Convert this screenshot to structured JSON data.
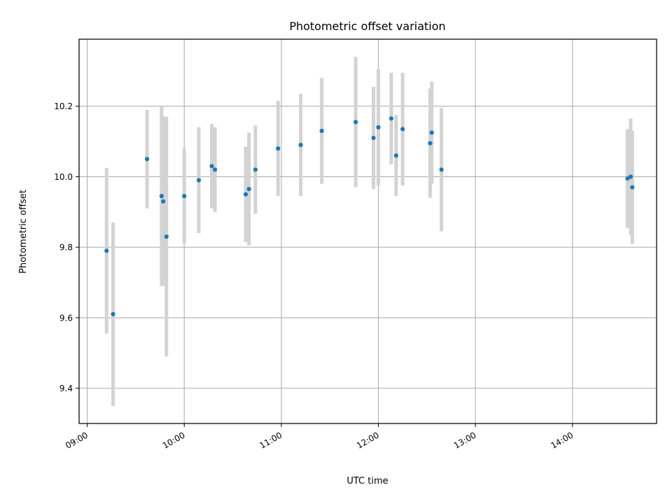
{
  "chart_data": {
    "type": "scatter",
    "title": "Photometric offset variation",
    "xlabel": "UTC time",
    "ylabel": "Photometric offset",
    "xlim": [
      "08:55",
      "14:52"
    ],
    "ylim": [
      9.3,
      10.39
    ],
    "x_ticks": [
      "09:00",
      "10:00",
      "11:00",
      "12:00",
      "13:00",
      "14:00"
    ],
    "y_ticks": [
      9.4,
      9.6,
      9.8,
      10.0,
      10.2
    ],
    "grid": true,
    "colors": {
      "point": "#1f77b4",
      "errorbar": "#d3d3d3",
      "grid": "#b0b0b0"
    },
    "points": [
      {
        "x": "09:12",
        "y": 9.79,
        "err": 0.235
      },
      {
        "x": "09:16",
        "y": 9.61,
        "err": 0.26
      },
      {
        "x": "09:37",
        "y": 10.05,
        "err": 0.14
      },
      {
        "x": "09:46",
        "y": 9.945,
        "err": 0.255
      },
      {
        "x": "09:47",
        "y": 9.93,
        "err": 0.24
      },
      {
        "x": "09:49",
        "y": 9.83,
        "err": 0.34
      },
      {
        "x": "10:00",
        "y": 9.945,
        "err": 0.135
      },
      {
        "x": "10:09",
        "y": 9.99,
        "err": 0.15
      },
      {
        "x": "10:17",
        "y": 10.03,
        "err": 0.12
      },
      {
        "x": "10:19",
        "y": 10.02,
        "err": 0.12
      },
      {
        "x": "10:38",
        "y": 9.95,
        "err": 0.135
      },
      {
        "x": "10:40",
        "y": 9.965,
        "err": 0.16
      },
      {
        "x": "10:44",
        "y": 10.02,
        "err": 0.125
      },
      {
        "x": "10:58",
        "y": 10.08,
        "err": 0.135
      },
      {
        "x": "11:12",
        "y": 10.09,
        "err": 0.145
      },
      {
        "x": "11:25",
        "y": 10.13,
        "err": 0.15
      },
      {
        "x": "11:46",
        "y": 10.155,
        "err": 0.185
      },
      {
        "x": "11:57",
        "y": 10.11,
        "err": 0.145
      },
      {
        "x": "12:00",
        "y": 10.14,
        "err": 0.165
      },
      {
        "x": "12:08",
        "y": 10.165,
        "err": 0.13
      },
      {
        "x": "12:11",
        "y": 10.06,
        "err": 0.115
      },
      {
        "x": "12:15",
        "y": 10.135,
        "err": 0.16
      },
      {
        "x": "12:32",
        "y": 10.095,
        "err": 0.155
      },
      {
        "x": "12:33",
        "y": 10.125,
        "err": 0.145
      },
      {
        "x": "12:39",
        "y": 10.02,
        "err": 0.175
      },
      {
        "x": "14:34",
        "y": 9.995,
        "err": 0.14
      },
      {
        "x": "14:36",
        "y": 10.0,
        "err": 0.165
      },
      {
        "x": "14:37",
        "y": 9.97,
        "err": 0.16
      }
    ]
  }
}
